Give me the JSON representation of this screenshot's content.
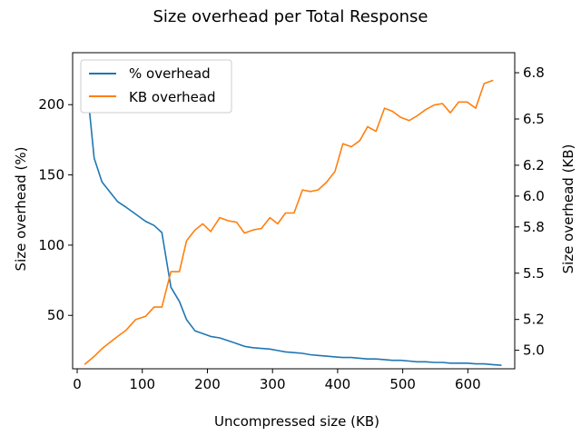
{
  "chart_data": {
    "type": "line",
    "title": "Size overhead per Total Response",
    "xlabel": "Uncompressed size (KB)",
    "ylabel_left": "Size overhead (%)",
    "ylabel_right": "Size overhead (KB)",
    "xlim": [
      -7,
      672
    ],
    "ylim_left": [
      12,
      237
    ],
    "ylim_right": [
      4.88,
      6.93
    ],
    "xticks": [
      0,
      100,
      200,
      300,
      400,
      500,
      600
    ],
    "yticks_left": [
      50,
      100,
      150,
      200
    ],
    "yticks_right": [
      5.0,
      5.2,
      5.5,
      5.8,
      6.0,
      6.2,
      6.5,
      6.8
    ],
    "legend_position": "upper-left",
    "colors": {
      "percent": "#1f77b4",
      "kb": "#ff7f0e"
    },
    "series": [
      {
        "name": "% overhead",
        "axis": "left",
        "x": [
          12,
          26,
          38,
          50,
          62,
          75,
          90,
          105,
          118,
          130,
          144,
          157,
          168,
          181,
          193,
          205,
          219,
          232,
          245,
          257,
          270,
          283,
          296,
          308,
          320,
          333,
          346,
          358,
          370,
          383,
          396,
          408,
          421,
          434,
          446,
          459,
          472,
          484,
          497,
          510,
          522,
          535,
          548,
          561,
          573,
          586,
          599,
          612,
          625,
          638,
          651
        ],
        "y": [
          228,
          162,
          145,
          138,
          131,
          127,
          122,
          117,
          114,
          109,
          70,
          60,
          47,
          39,
          37,
          35,
          34,
          32,
          30,
          28,
          27,
          26.5,
          26,
          25,
          24,
          23.5,
          23,
          22,
          21.5,
          21,
          20.5,
          20,
          20,
          19.5,
          19,
          19,
          18.5,
          18,
          18,
          17.5,
          17,
          17,
          16.5,
          16.5,
          16,
          16,
          16,
          15.5,
          15.5,
          15,
          14.5
        ]
      },
      {
        "name": "KB overhead",
        "axis": "right",
        "x": [
          12,
          26,
          38,
          50,
          62,
          75,
          90,
          105,
          118,
          130,
          144,
          157,
          168,
          181,
          193,
          205,
          219,
          232,
          245,
          257,
          270,
          283,
          296,
          308,
          320,
          333,
          346,
          358,
          370,
          383,
          396,
          408,
          421,
          434,
          446,
          459,
          472,
          484,
          497,
          510,
          522,
          535,
          548,
          561,
          573,
          586,
          599,
          612,
          625,
          638,
          651
        ],
        "y": [
          4.91,
          4.96,
          5.01,
          5.05,
          5.09,
          5.13,
          5.2,
          5.22,
          5.28,
          5.28,
          5.51,
          5.51,
          5.71,
          5.78,
          5.82,
          5.77,
          5.86,
          5.84,
          5.83,
          5.76,
          5.78,
          5.79,
          5.86,
          5.82,
          5.89,
          5.89,
          6.04,
          6.03,
          6.04,
          6.09,
          6.16,
          6.34,
          6.32,
          6.36,
          6.45,
          6.42,
          6.57,
          6.55,
          6.51,
          6.49,
          6.52,
          6.56,
          6.59,
          6.6,
          6.54,
          6.61,
          6.61,
          6.57,
          6.73,
          6.75,
          null
        ]
      }
    ]
  }
}
